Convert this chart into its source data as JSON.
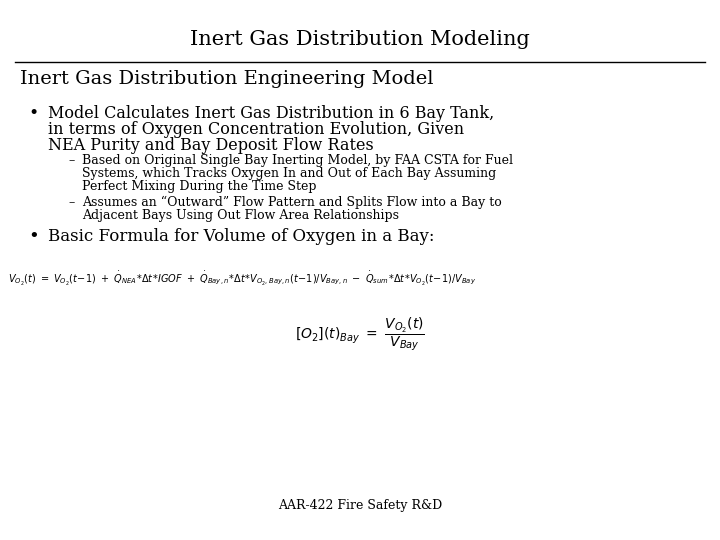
{
  "title": "Inert Gas Distribution Modeling",
  "subtitle": "Inert Gas Distribution Engineering Model",
  "bullet1_line1": "Model Calculates Inert Gas Distribution in 6 Bay Tank,",
  "bullet1_line2": "in terms of Oxygen Concentration Evolution, Given",
  "bullet1_line3": "NEA Purity and Bay Deposit Flow Rates",
  "sub1_line1": "Based on Original Single Bay Inerting Model, by FAA CSTA for Fuel",
  "sub1_line2": "Systems, which Tracks Oxygen In and Out of Each Bay Assuming",
  "sub1_line3": "Perfect Mixing During the Time Step",
  "sub2_line1": "Assumes an “Outward” Flow Pattern and Splits Flow into a Bay to",
  "sub2_line2": "Adjacent Bays Using Out Flow Area Relationships",
  "bullet2": "Basic Formula for Volume of Oxygen in a Bay:",
  "footer": "AAR-422 Fire Safety R&D",
  "bg_color": "#ffffff",
  "text_color": "#000000",
  "title_fontsize": 15,
  "subtitle_fontsize": 14,
  "bullet_fontsize": 11.5,
  "sub_bullet_fontsize": 9,
  "bullet2_fontsize": 12,
  "footer_fontsize": 9,
  "eq1_fontsize": 7,
  "eq2_fontsize": 10
}
